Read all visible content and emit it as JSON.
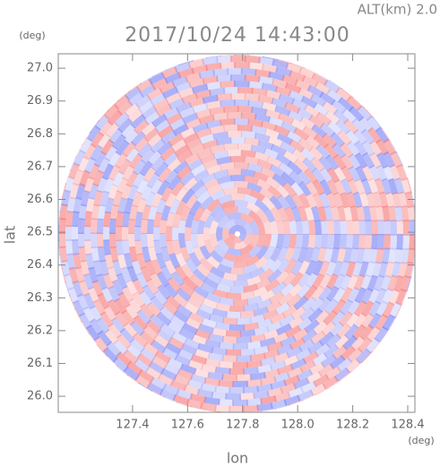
{
  "chart_data": {
    "type": "radar-ppi",
    "title": "2017/10/24 14:43:00",
    "annotation": "ALT(km) 2.0",
    "x_label": "lon",
    "y_label": "lat",
    "x_unit": "(deg)",
    "y_unit": "(deg)",
    "xlim": [
      127.13,
      128.426
    ],
    "ylim": [
      25.951,
      27.044
    ],
    "xticks": [
      127.4,
      127.6,
      127.8,
      {
        "value": 128,
        "label": "128.0"
      },
      128.2,
      128.4
    ],
    "yticks": [
      {
        "value": 26,
        "label": "26.0"
      },
      26.1,
      26.2,
      26.3,
      26.4,
      26.5,
      26.6,
      26.7,
      26.8,
      26.9,
      {
        "value": 27,
        "label": "27.0"
      }
    ]
  }
}
